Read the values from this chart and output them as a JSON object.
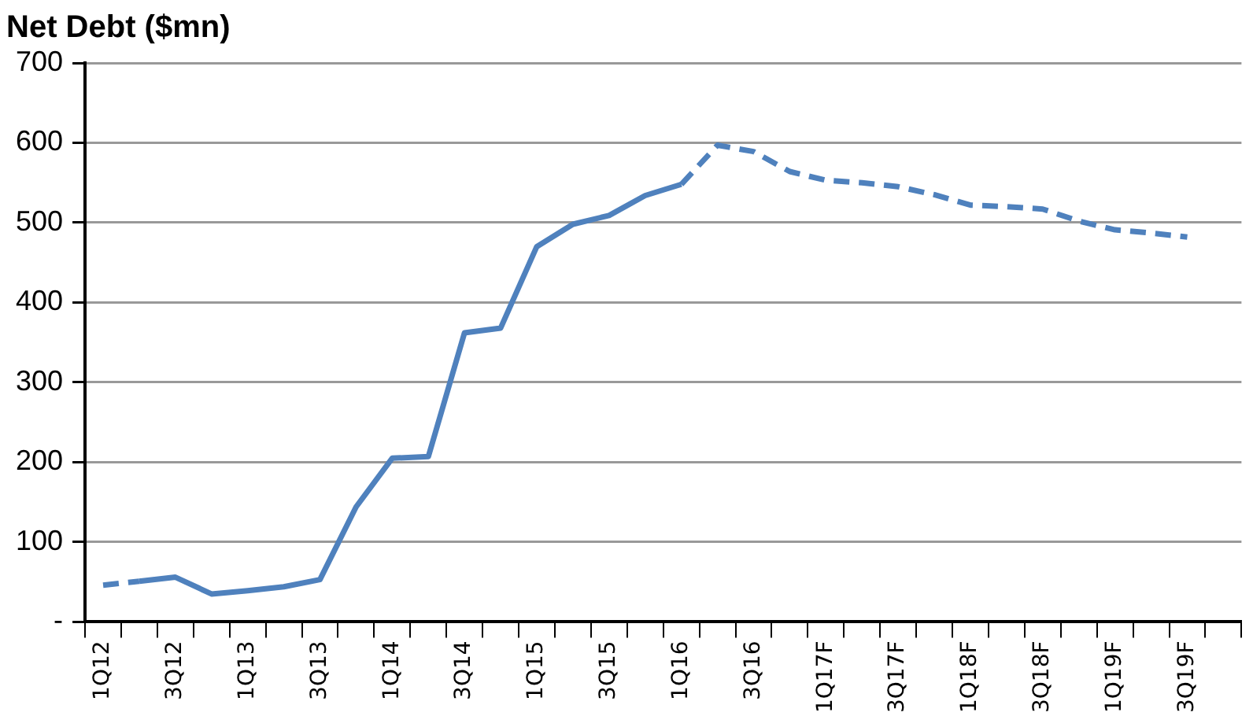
{
  "chart_data": {
    "type": "line",
    "title": "Net Debt ($mn)",
    "categories": [
      "1Q12",
      null,
      "3Q12",
      null,
      "1Q13",
      null,
      "3Q13",
      null,
      "1Q14",
      null,
      "3Q14",
      null,
      "1Q15",
      null,
      "3Q15",
      null,
      "1Q16",
      null,
      "3Q16",
      null,
      "1Q17F",
      null,
      "3Q17F",
      null,
      "1Q18F",
      null,
      "3Q18F",
      null,
      "1Q19F",
      null,
      "3Q19F",
      null
    ],
    "series": [
      {
        "color": "#4f81bd",
        "line_style": "dashed",
        "values": [
          46,
          51,
          null,
          null,
          null,
          null,
          null,
          null,
          null,
          null,
          null,
          null,
          null,
          null,
          null,
          null,
          548,
          597,
          589,
          564,
          553,
          550,
          545,
          535,
          522,
          520,
          517,
          502,
          491,
          487,
          482,
          null
        ]
      },
      {
        "color": "#4f81bd",
        "line_style": "solid",
        "values": [
          null,
          51,
          56,
          35,
          39,
          44,
          53,
          144,
          205,
          207,
          362,
          368,
          470,
          498,
          509,
          534,
          548,
          null,
          null,
          null,
          null,
          null,
          null,
          null,
          null,
          null,
          null,
          null,
          null,
          null,
          null,
          null
        ]
      }
    ],
    "ylim": [
      0,
      700
    ],
    "yticks": [
      {
        "value": 0,
        "label": "-"
      },
      100,
      200,
      300,
      400,
      500,
      600,
      700
    ],
    "grid": "y",
    "legend": false,
    "marker": "none"
  }
}
